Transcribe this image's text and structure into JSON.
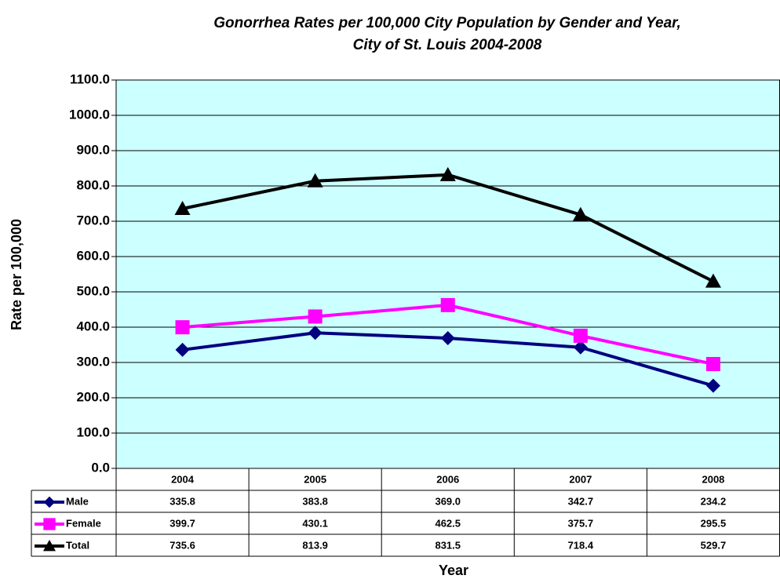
{
  "chart_data": {
    "type": "line",
    "title": [
      "Gonorrhea Rates per 100,000 City Population by Gender and Year,",
      "City of St. Louis 2004-2008"
    ],
    "x_label": "Year",
    "y_label": "Rate per 100,000",
    "categories": [
      "2004",
      "2005",
      "2006",
      "2007",
      "2008"
    ],
    "series": [
      {
        "name": "Male",
        "color": "#000080",
        "marker": "diamond",
        "values": [
          335.8,
          383.8,
          369.0,
          342.7,
          234.2
        ],
        "value_labels": [
          "335.8",
          "383.8",
          "369.0",
          "342.7",
          "234.2"
        ]
      },
      {
        "name": "Female",
        "color": "#ff00ff",
        "marker": "square",
        "values": [
          399.7,
          430.1,
          462.5,
          375.7,
          295.5
        ],
        "value_labels": [
          "399.7",
          "430.1",
          "462.5",
          "375.7",
          "295.5"
        ]
      },
      {
        "name": "Total",
        "color": "#000000",
        "marker": "triangle",
        "values": [
          735.6,
          813.9,
          831.5,
          718.4,
          529.7
        ],
        "value_labels": [
          "735.6",
          "813.9",
          "831.5",
          "718.4",
          "529.7"
        ]
      }
    ],
    "ylim": [
      0,
      1100
    ],
    "yticks": [
      {
        "value": 0,
        "label": "0.0"
      },
      {
        "value": 100,
        "label": "100.0"
      },
      {
        "value": 200,
        "label": "200.0"
      },
      {
        "value": 300,
        "label": "300.0"
      },
      {
        "value": 400,
        "label": "400.0"
      },
      {
        "value": 500,
        "label": "500.0"
      },
      {
        "value": 600,
        "label": "600.0"
      },
      {
        "value": 700,
        "label": "700.0"
      },
      {
        "value": 800,
        "label": "800.0"
      },
      {
        "value": 900,
        "label": "900.0"
      },
      {
        "value": 1000,
        "label": "1000.0"
      },
      {
        "value": 1100,
        "label": "1100.0"
      }
    ],
    "grid": true,
    "plot_background": "#ccffff"
  }
}
